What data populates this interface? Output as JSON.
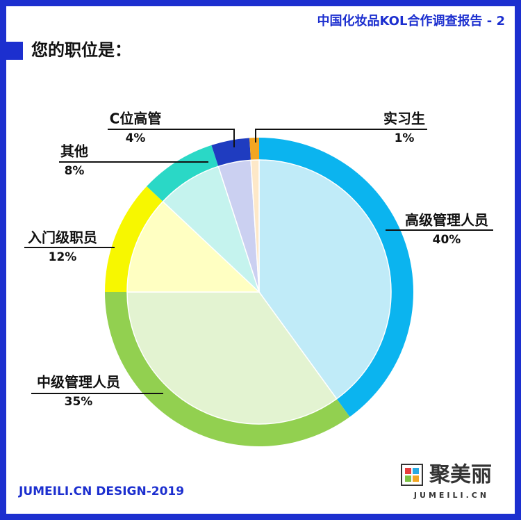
{
  "header": "中国化妆品KOL合作调查报告 - 2",
  "footer": "JUMEILI.CN DESIGN-2019",
  "logo": {
    "name": "聚美丽",
    "domain": "JUMEILI.CN"
  },
  "chart_data": {
    "type": "pie",
    "title": "您的职位是：",
    "categories": [
      "高级管理人员",
      "中级管理人员",
      "入门级职员",
      "其他",
      "C位高管",
      "实习生"
    ],
    "values": [
      40,
      35,
      12,
      8,
      4,
      1
    ],
    "value_labels": [
      "40%",
      "35%",
      "12%",
      "8%",
      "4%",
      "1%"
    ],
    "colors": [
      "#0bb4ef",
      "#92d050",
      "#f7f700",
      "#2ad8c6",
      "#1f3cc0",
      "#f2a623"
    ],
    "inner_colors": [
      "#c0ebf8",
      "#e3f3d1",
      "#ffffc2",
      "#c5f3ee",
      "#cbd0f1",
      "#fde8c8"
    ]
  }
}
